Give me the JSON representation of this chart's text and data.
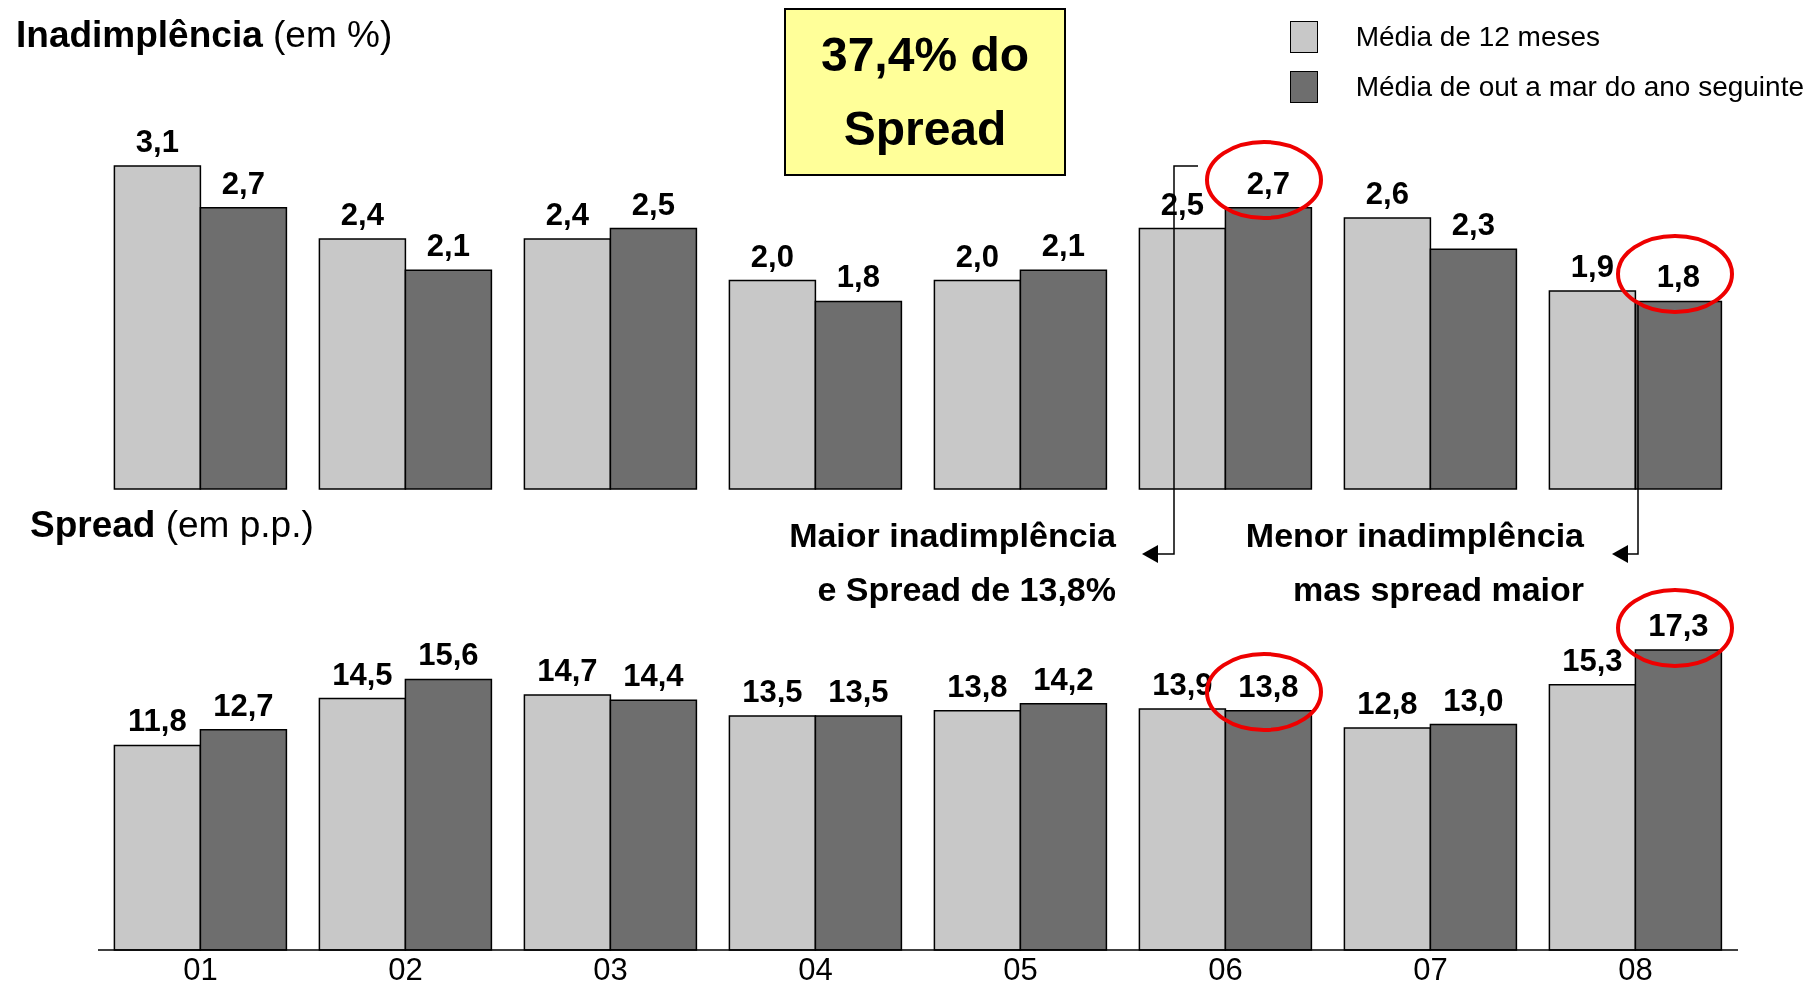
{
  "chart_data": [
    {
      "type": "bar",
      "title": "Inadimplência",
      "subtitle": "(em %)",
      "categories": [
        "01",
        "02",
        "03",
        "04",
        "05",
        "06",
        "07",
        "08"
      ],
      "tick_labels": false,
      "legend": "top right",
      "annotations": [
        "37,4% do\nSpread"
      ],
      "series": [
        {
          "name": "Média de 12 meses",
          "color": "#c8c8c8",
          "values": [
            3.1,
            2.4,
            2.4,
            2.0,
            2.0,
            2.5,
            2.6,
            1.9
          ],
          "value_labels": [
            "3,1",
            "2,4",
            "2,4",
            "2,0",
            "2,0",
            "2,5",
            "2,6",
            "1,9"
          ]
        },
        {
          "name": "Média de out a mar do ano seguinte",
          "color": "#6e6e6e",
          "values": [
            2.7,
            2.1,
            2.5,
            1.8,
            2.1,
            2.7,
            2.3,
            1.8
          ],
          "value_labels": [
            "2,7",
            "2,1",
            "2,5",
            "1,8",
            "2,1",
            "2,7",
            "2,3",
            "1,8"
          ]
        }
      ]
    },
    {
      "type": "bar",
      "title": "Spread",
      "subtitle": "(em p.p.)",
      "categories": [
        "01",
        "02",
        "03",
        "04",
        "05",
        "06",
        "07",
        "08"
      ],
      "annotations": [
        "Maior inadimplência\ne Spread de 13,8%",
        "Menor inadimplência\nmas spread maior"
      ],
      "series": [
        {
          "color": "#c8c8c8",
          "values": [
            11.8,
            14.5,
            14.7,
            13.5,
            13.8,
            13.9,
            12.8,
            15.3
          ],
          "value_labels": [
            "11,8",
            "14,5",
            "14,7",
            "13,5",
            "13,8",
            "13,9",
            "12,8",
            "15,3"
          ]
        },
        {
          "color": "#6e6e6e",
          "values": [
            12.7,
            15.6,
            14.4,
            13.5,
            14.2,
            13.8,
            13.0,
            17.3
          ],
          "value_labels": [
            "12,7",
            "15,6",
            "14,4",
            "13,5",
            "14,2",
            "13,8",
            "13,0",
            "17,3"
          ]
        }
      ]
    }
  ]
}
